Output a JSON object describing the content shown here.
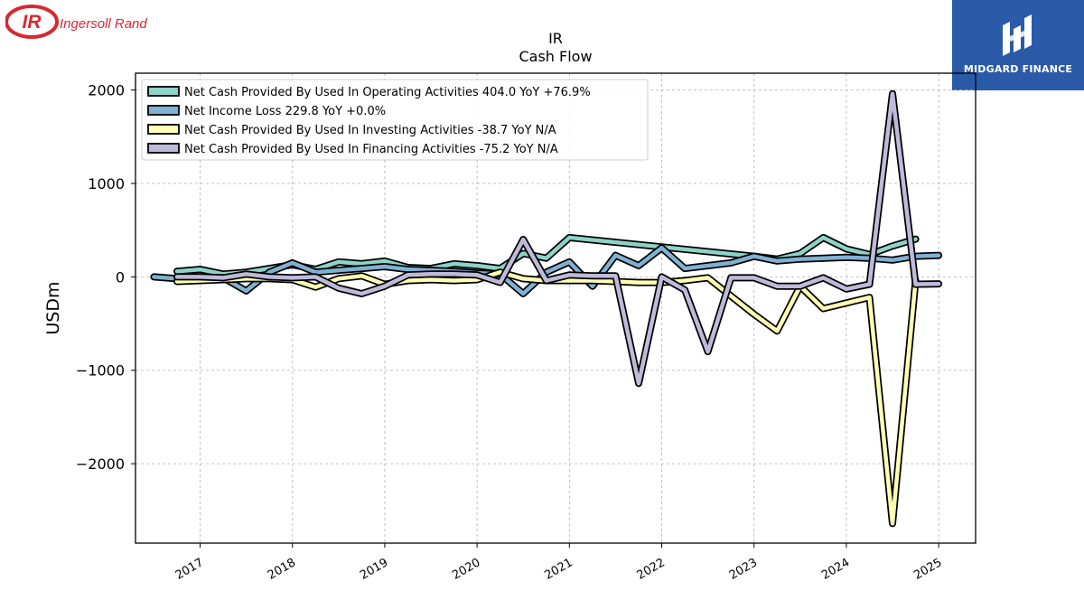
{
  "brand_logo": {
    "mark": "IR",
    "name": "Ingersoll Rand",
    "color": "#d7282f"
  },
  "badge": {
    "name": "MIDGARD FINANCE",
    "color": "#2b5aa8"
  },
  "chart_data": {
    "type": "line",
    "title": "IR",
    "subtitle": "Cash Flow",
    "ylabel": "USDm",
    "xlabel": "",
    "xlim": [
      2016.3,
      2025.4
    ],
    "ylim": [
      -2850,
      2180
    ],
    "xticks": [
      2017,
      2018,
      2019,
      2020,
      2021,
      2022,
      2023,
      2024,
      2025
    ],
    "yticks": [
      2000,
      1000,
      0,
      -1000,
      -2000
    ],
    "ytick_labels": [
      "2000",
      "1000",
      "0",
      "−1000",
      "−2000"
    ],
    "grid": true,
    "legend_position": "upper-left",
    "series": [
      {
        "name": "Net Cash Provided By Used In Operating Activities  404.0 YoY +76.9%",
        "color": "#8dd3c7",
        "x": [
          2016.75,
          2017.0,
          2017.25,
          2017.5,
          2017.75,
          2018.0,
          2018.25,
          2018.5,
          2018.75,
          2019.0,
          2019.25,
          2019.5,
          2019.75,
          2020.0,
          2020.25,
          2020.5,
          2020.75,
          2021.0,
          2023.0,
          2023.25,
          2023.5,
          2023.75,
          2024.0,
          2024.25,
          2024.5,
          2024.75
        ],
        "y": [
          60,
          80,
          30,
          50,
          90,
          130,
          80,
          160,
          140,
          170,
          100,
          90,
          140,
          120,
          90,
          250,
          200,
          420,
          220,
          190,
          250,
          420,
          300,
          240,
          330,
          404
        ]
      },
      {
        "name": "Net Income Loss  229.8 YoY +0.0%",
        "color": "#80b1d3",
        "x": [
          2016.5,
          2016.75,
          2017.0,
          2017.25,
          2017.5,
          2017.75,
          2018.0,
          2018.25,
          2018.5,
          2018.75,
          2019.0,
          2019.25,
          2019.5,
          2019.75,
          2020.0,
          2020.25,
          2020.5,
          2020.75,
          2021.0,
          2021.25,
          2021.5,
          2021.75,
          2022.0,
          2022.25,
          2022.5,
          2022.75,
          2023.0,
          2023.25,
          2023.5,
          2023.75,
          2024.0,
          2024.25,
          2024.5,
          2024.75,
          2025.0
        ],
        "y": [
          0,
          -20,
          -20,
          -10,
          -150,
          50,
          150,
          50,
          70,
          90,
          110,
          80,
          70,
          60,
          40,
          30,
          -180,
          50,
          160,
          -100,
          230,
          120,
          310,
          90,
          120,
          150,
          220,
          170,
          190,
          200,
          210,
          200,
          180,
          220,
          230
        ]
      },
      {
        "name": "Net Cash Provided By Used In Investing Activities  -38.7 YoY N/A",
        "color": "#ffffb3",
        "x": [
          2016.75,
          2017.0,
          2017.25,
          2017.5,
          2017.75,
          2018.0,
          2018.25,
          2018.5,
          2018.75,
          2019.0,
          2019.25,
          2019.5,
          2019.75,
          2020.0,
          2020.25,
          2020.5,
          2020.75,
          2021.0,
          2021.25,
          2021.5,
          2021.75,
          2022.0,
          2022.25,
          2022.5,
          2023.0,
          2023.25,
          2023.5,
          2023.75,
          2024.0,
          2024.25,
          2024.5,
          2024.75
        ],
        "y": [
          -50,
          -40,
          -30,
          -20,
          -20,
          -30,
          -110,
          -20,
          10,
          -80,
          -40,
          -30,
          -40,
          -30,
          50,
          -20,
          -40,
          -40,
          -40,
          -50,
          -60,
          -60,
          -40,
          -10,
          -400,
          -580,
          -100,
          -340,
          -280,
          -220,
          -2640,
          -39
        ]
      },
      {
        "name": "Net Cash Provided By Used In Financing Activities  -75.2 YoY N/A",
        "color": "#bebada",
        "x": [
          2016.75,
          2017.0,
          2017.25,
          2017.5,
          2017.75,
          2018.0,
          2018.25,
          2018.5,
          2018.75,
          2019.0,
          2019.25,
          2019.5,
          2019.75,
          2020.0,
          2020.25,
          2020.5,
          2020.75,
          2021.0,
          2021.25,
          2021.5,
          2021.75,
          2022.0,
          2022.25,
          2022.5,
          2022.75,
          2023.0,
          2023.25,
          2023.5,
          2023.75,
          2024.0,
          2024.25,
          2024.5,
          2024.75,
          2025.0
        ],
        "y": [
          0,
          0,
          -10,
          30,
          0,
          -10,
          0,
          -120,
          -180,
          -100,
          20,
          30,
          30,
          20,
          -60,
          400,
          -40,
          20,
          10,
          10,
          -1140,
          0,
          -140,
          -800,
          -10,
          -10,
          -100,
          -100,
          -10,
          -130,
          -80,
          1960,
          -80,
          -75
        ]
      }
    ]
  }
}
